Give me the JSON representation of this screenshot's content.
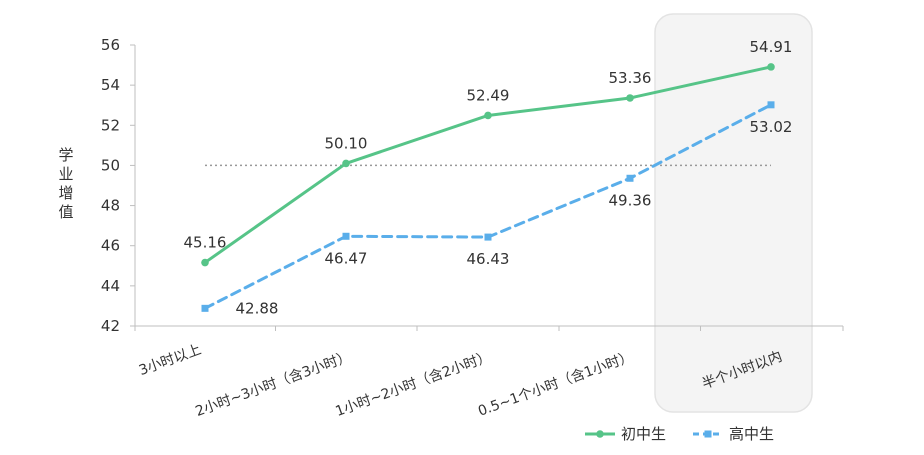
{
  "chart_data": {
    "type": "line",
    "categories": [
      "3小时以上",
      "2小时~3小时（含3小时）",
      "1小时~2小时（含2小时）",
      "0.5~1个小时（含1小时）",
      "半个小时以内"
    ],
    "series": [
      {
        "name": "初中生",
        "values": [
          45.16,
          50.1,
          52.49,
          53.36,
          54.91
        ],
        "color": "#56c488",
        "line_style": "solid",
        "marker": "circle"
      },
      {
        "name": "高中生",
        "values": [
          42.88,
          46.47,
          46.43,
          49.36,
          53.02
        ],
        "color": "#5aaeea",
        "line_style": "dashed",
        "marker": "square"
      }
    ],
    "data_labels": {
      "初中生": [
        "45.16",
        "50.10",
        "52.49",
        "53.36",
        "54.91"
      ],
      "高中生": [
        "42.88",
        "46.47",
        "46.43",
        "49.36",
        "53.02"
      ]
    },
    "ylabel": "学业增值",
    "xlabel": "",
    "ylim": [
      42,
      56
    ],
    "yticks": [
      42,
      44,
      46,
      48,
      50,
      52,
      54,
      56
    ],
    "reference_line": {
      "y": 50,
      "style": "dotted",
      "color": "#999999"
    },
    "highlight_category": "半个小时以内",
    "grid": false,
    "legend_position": "bottom-right"
  }
}
